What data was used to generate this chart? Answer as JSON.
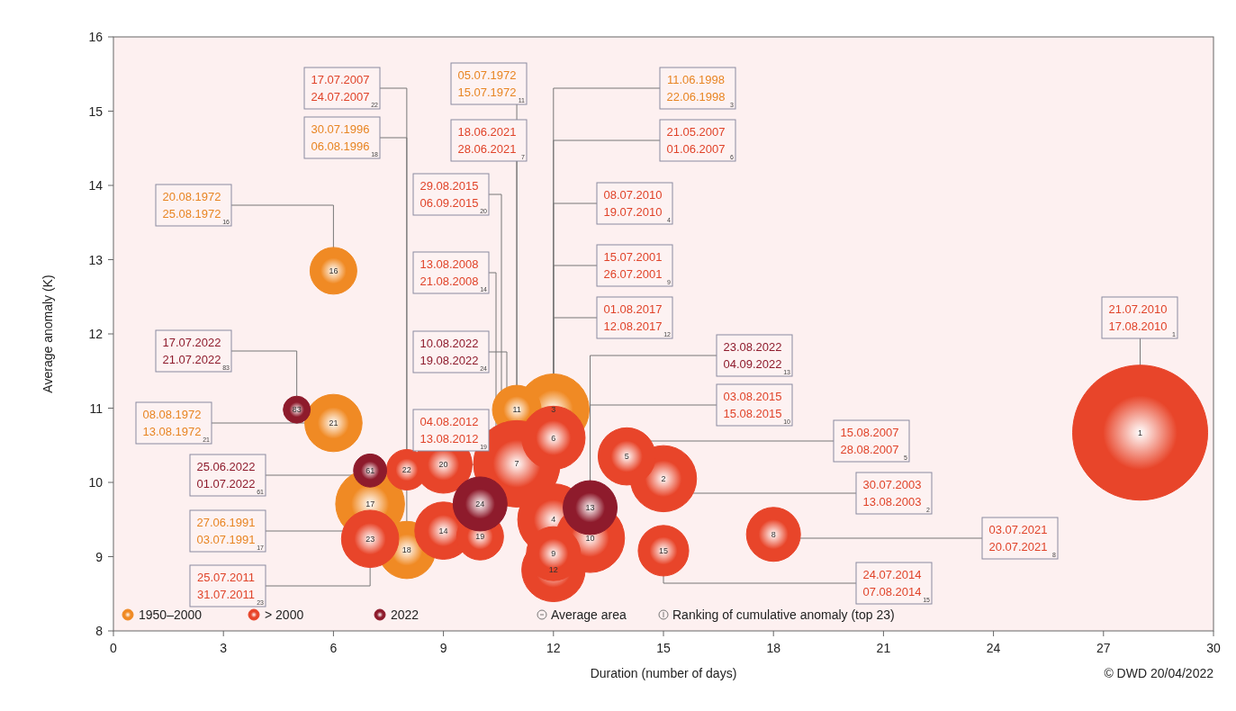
{
  "chart_data": {
    "type": "bubble",
    "xlabel": "Duration (number of days)",
    "ylabel": "Average anomaly (K)",
    "xlim": [
      0,
      30
    ],
    "xticks": [
      0,
      3,
      6,
      9,
      12,
      15,
      18,
      21,
      24,
      27,
      30
    ],
    "ylim": [
      8,
      16
    ],
    "yticks": [
      8,
      9,
      10,
      11,
      12,
      13,
      14,
      15,
      16
    ],
    "legend": "bottom left",
    "series": [
      {
        "name": "1950–2000",
        "color": "#f08a24",
        "x": [
          12,
          11,
          6,
          7,
          8,
          6
        ],
        "values": [
          10.98,
          10.98,
          12.85,
          9.71,
          9.09,
          10.8
        ],
        "sizes": [
          0.28,
          0.13,
          0.12,
          0.26,
          0.18,
          0.18
        ]
      },
      {
        "name": "> 2000",
        "color": "#e8452a",
        "x": [
          28,
          11,
          12,
          15,
          12,
          12,
          14,
          13,
          18,
          9,
          9,
          15,
          12,
          7,
          10,
          8
        ],
        "values": [
          10.67,
          10.25,
          9.5,
          10.05,
          10.6,
          8.82,
          10.35,
          9.25,
          9.3,
          9.35,
          10.24,
          9.08,
          9.04,
          9.24,
          9.27,
          10.17
        ],
        "sizes": [
          1,
          0.41,
          0.28,
          0.24,
          0.22,
          0.22,
          0.18,
          0.26,
          0.16,
          0.18,
          0.18,
          0.14,
          0.16,
          0.18,
          0.12,
          0.09
        ]
      },
      {
        "name": "2022",
        "color": "#8e1b2c",
        "x": [
          13,
          10,
          5,
          7
        ],
        "values": [
          9.66,
          9.71,
          10.98,
          10.16
        ],
        "sizes": [
          0.16,
          0.16,
          0.04,
          0.06
        ]
      }
    ],
    "annotations": [
      {
        "text": "1",
        "x": 28,
        "y": 10.67
      },
      {
        "text": "2",
        "x": 15,
        "y": 10.05
      },
      {
        "text": "3",
        "x": 12,
        "y": 10.98
      },
      {
        "text": "4",
        "x": 12,
        "y": 9.5
      },
      {
        "text": "5",
        "x": 14,
        "y": 10.35
      },
      {
        "text": "6",
        "x": 12,
        "y": 10.6
      },
      {
        "text": "7",
        "x": 11,
        "y": 10.25
      },
      {
        "text": "8",
        "x": 18,
        "y": 9.3
      },
      {
        "text": "9",
        "x": 12,
        "y": 9.04
      },
      {
        "text": "10",
        "x": 13,
        "y": 9.25
      },
      {
        "text": "11",
        "x": 11,
        "y": 10.98
      },
      {
        "text": "12",
        "x": 12,
        "y": 8.82
      },
      {
        "text": "13",
        "x": 13,
        "y": 9.66
      },
      {
        "text": "14",
        "x": 9,
        "y": 9.35
      },
      {
        "text": "15",
        "x": 15,
        "y": 9.08
      },
      {
        "text": "16",
        "x": 6,
        "y": 12.85
      },
      {
        "text": "17",
        "x": 7,
        "y": 9.71
      },
      {
        "text": "18",
        "x": 8,
        "y": 9.09
      },
      {
        "text": "19",
        "x": 10,
        "y": 9.27
      },
      {
        "text": "20",
        "x": 9,
        "y": 10.24
      },
      {
        "text": "21",
        "x": 6,
        "y": 10.8
      },
      {
        "text": "22",
        "x": 8,
        "y": 10.17
      },
      {
        "text": "23",
        "x": 7,
        "y": 9.24
      },
      {
        "text": "24",
        "x": 10,
        "y": 9.71
      },
      {
        "text": "83",
        "x": 5,
        "y": 10.98
      },
      {
        "text": "61",
        "x": 7,
        "y": 10.16
      },
      {
        "text": "21.07.2010\n17.08.2010",
        "x": 28,
        "y": 10.67
      },
      {
        "text": "30.07.2003\n13.08.2003",
        "x": 15,
        "y": 10.05
      },
      {
        "text": "11.06.1998\n22.06.1998",
        "x": 12,
        "y": 10.98
      },
      {
        "text": "08.07.2010\n19.07.2010",
        "x": 12,
        "y": 9.5
      },
      {
        "text": "15.08.2007\n28.08.2007",
        "x": 14,
        "y": 10.35
      },
      {
        "text": "21.05.2007\n01.06.2007",
        "x": 12,
        "y": 10.6
      },
      {
        "text": "18.06.2021\n28.06.2021",
        "x": 11,
        "y": 10.25
      },
      {
        "text": "03.07.2021\n20.07.2021",
        "x": 18,
        "y": 9.3
      },
      {
        "text": "15.07.2001\n26.07.2001",
        "x": 12,
        "y": 9.04
      },
      {
        "text": "03.08.2015\n15.08.2015",
        "x": 13,
        "y": 9.25
      },
      {
        "text": "05.07.1972\n15.07.1972",
        "x": 11,
        "y": 10.98
      },
      {
        "text": "01.08.2017\n12.08.2017",
        "x": 12,
        "y": 8.82
      },
      {
        "text": "23.08.2022\n04.09.2022",
        "x": 13,
        "y": 9.66
      },
      {
        "text": "13.08.2008\n21.08.2008",
        "x": 9,
        "y": 9.35
      },
      {
        "text": "24.07.2014\n07.08.2014",
        "x": 15,
        "y": 9.08
      },
      {
        "text": "20.08.1972\n25.08.1972",
        "x": 6,
        "y": 12.85
      },
      {
        "text": "27.06.1991\n03.07.1991",
        "x": 7,
        "y": 9.71
      },
      {
        "text": "30.07.1996\n06.08.1996",
        "x": 8,
        "y": 9.09
      },
      {
        "text": "04.08.2012\n13.08.2012",
        "x": 10,
        "y": 9.27
      },
      {
        "text": "29.08.2015\n06.09.2015",
        "x": 9,
        "y": 10.24
      },
      {
        "text": "08.08.1972\n13.08.1972",
        "x": 6,
        "y": 10.8
      },
      {
        "text": "17.07.2007\n24.07.2007",
        "x": 8,
        "y": 10.17
      },
      {
        "text": "25.07.2011\n31.07.2011",
        "x": 7,
        "y": 9.24
      },
      {
        "text": "10.08.2022\n19.08.2022",
        "x": 10,
        "y": 9.71
      },
      {
        "text": "17.07.2022\n21.07.2022",
        "x": 5,
        "y": 10.98
      },
      {
        "text": "25.06.2022\n01.07.2022",
        "x": 7,
        "y": 10.16
      },
      "Average area",
      "Ranking of cumulative anomaly (top 23)",
      "© DWD 20/04/2022"
    ]
  }
}
